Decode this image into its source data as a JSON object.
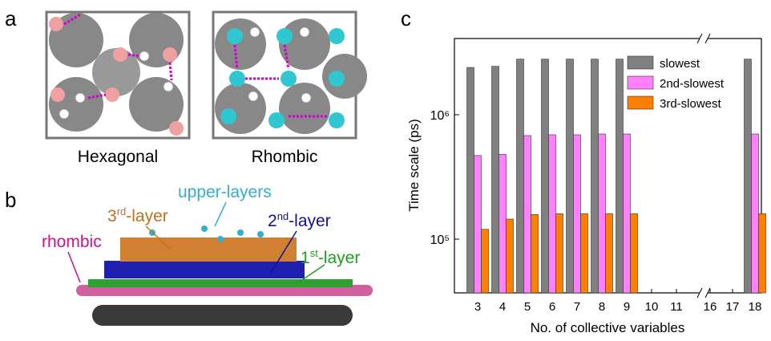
{
  "panels": {
    "a": {
      "label": "a",
      "images": [
        "Hexagonal",
        "Rhombic"
      ]
    },
    "b": {
      "label": "b",
      "annotations": {
        "upper": "upper-layers",
        "third": [
          "3",
          "rd",
          "-layer"
        ],
        "second": [
          "2",
          "nd",
          "-layer"
        ],
        "first": [
          "1",
          "st",
          "-layer"
        ],
        "rhombic": "rhombic"
      }
    },
    "c": {
      "label": "c"
    }
  },
  "chart_data": {
    "type": "bar",
    "x_label": "No. of collective variables",
    "y_label": "Time scale (ps)",
    "categories": [
      "3",
      "4",
      "5",
      "6",
      "7",
      "8",
      "9",
      "10",
      "11",
      "16",
      "17",
      "18"
    ],
    "log_y": true,
    "ylim": [
      37000,
      4100000
    ],
    "yticks": [
      {
        "value": 100000,
        "label": "10⁵"
      },
      {
        "value": 1000000,
        "label": "10⁶"
      }
    ],
    "legend": "upper right",
    "series": [
      {
        "name": "slowest",
        "color": "#808080",
        "values": [
          2400000,
          2450000,
          2800000,
          2800000,
          2800000,
          2800000,
          2800000,
          null,
          null,
          null,
          null,
          2800000
        ]
      },
      {
        "name": "2nd-slowest",
        "color": "#ff80ff",
        "values": [
          470000,
          480000,
          680000,
          690000,
          690000,
          700000,
          700000,
          null,
          null,
          null,
          null,
          700000
        ]
      },
      {
        "name": "3rd-slowest",
        "color": "#ff8000",
        "values": [
          120000,
          145000,
          158000,
          160000,
          160000,
          160000,
          160000,
          null,
          null,
          null,
          null,
          160000
        ]
      }
    ]
  }
}
